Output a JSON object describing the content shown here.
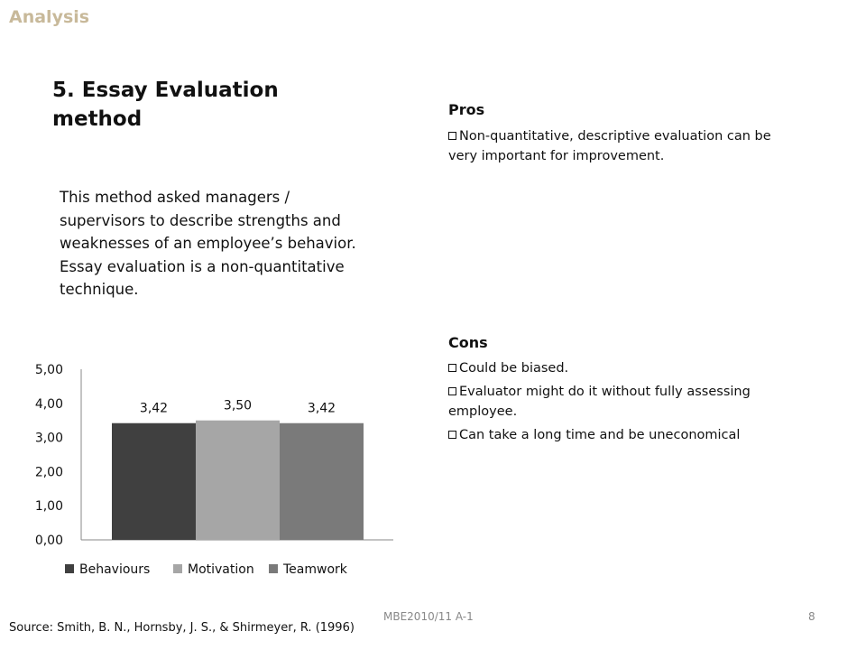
{
  "header": {
    "label": "Analysis"
  },
  "slide": {
    "title": "5. Essay Evaluation method",
    "description": "This method asked managers / supervisors to describe strengths and weaknesses of an employee’s behavior. Essay evaluation is a non-quantitative technique."
  },
  "pros": {
    "heading": "Pros",
    "items": [
      "Non-quantitative, descriptive evaluation can be very important for improvement."
    ]
  },
  "cons": {
    "heading": "Cons",
    "items": [
      "Could be biased.",
      "Evaluator might  do it without fully assessing employee.",
      "Can take a long time and be uneconomical"
    ]
  },
  "chart_data": {
    "type": "bar",
    "categories": [
      ""
    ],
    "series": [
      {
        "name": "Behaviours",
        "values": [
          3.42
        ],
        "label": "3,42",
        "color": "#404040"
      },
      {
        "name": "Motivation",
        "values": [
          3.5
        ],
        "label": "3,50",
        "color": "#a6a6a6"
      },
      {
        "name": "Teamwork",
        "values": [
          3.42
        ],
        "label": "3,42",
        "color": "#7a7a7a"
      }
    ],
    "yticks": [
      "0,00",
      "1,00",
      "2,00",
      "3,00",
      "4,00",
      "5,00"
    ],
    "ylim": [
      0,
      5
    ],
    "legend": "bottom",
    "grid": false
  },
  "footer": {
    "source": "Source: Smith, B. N., Hornsby, J. S., & Shirmeyer, R. (1996)",
    "code": "MBE2010/11 A-1",
    "page": "8"
  }
}
